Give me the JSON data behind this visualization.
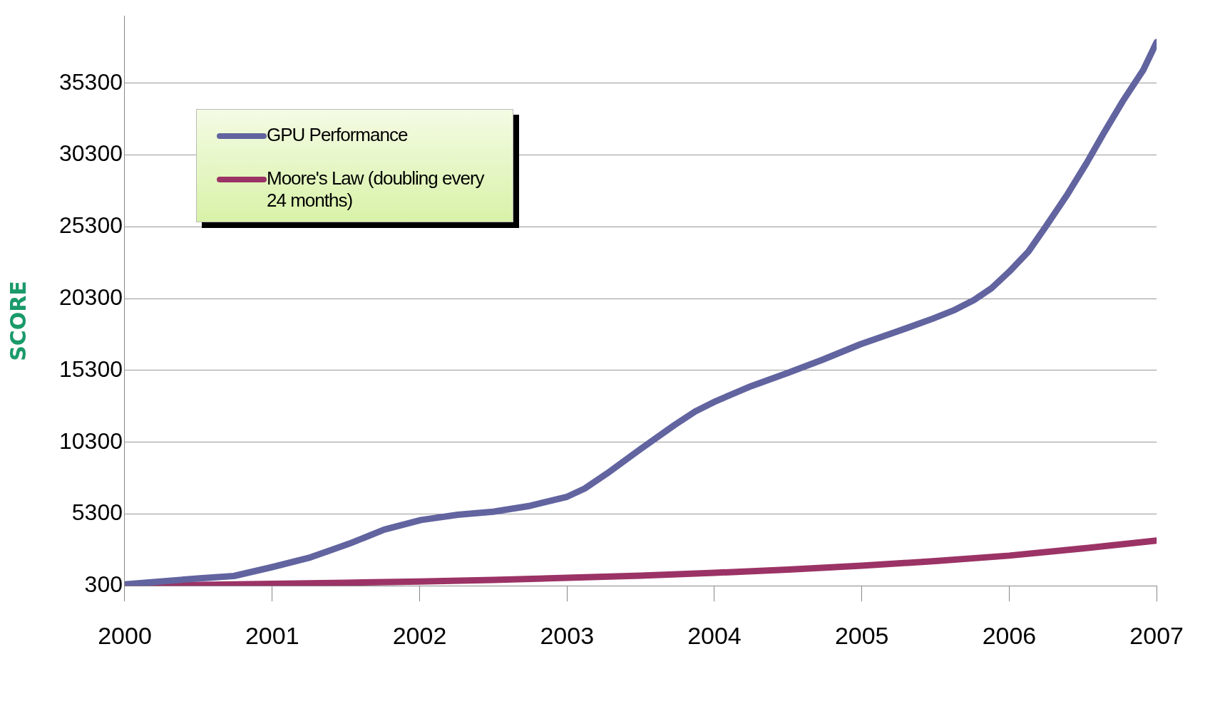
{
  "chart_data": {
    "type": "line",
    "ylabel": "SCORE",
    "xlim": [
      2000,
      2007
    ],
    "xticks": [
      2000,
      2001,
      2002,
      2003,
      2004,
      2005,
      2006,
      2007
    ],
    "ylim": [
      300,
      40000
    ],
    "yticks": [
      300,
      5300,
      10300,
      15300,
      20300,
      25300,
      30300,
      35300
    ],
    "grid": "y",
    "legend": "top left",
    "marker": "none",
    "line_style": "solid",
    "series": [
      {
        "name": "GPU Performance",
        "color": "#6264a0",
        "x": [
          2000,
          2000.51,
          2000.74,
          2001,
          2001.26,
          2001.52,
          2001.76,
          2002.01,
          2002.26,
          2002.5,
          2002.75,
          2003,
          2003.12,
          2003.27,
          2003.5,
          2003.73,
          2003.87,
          2004.01,
          2004.25,
          2004.5,
          2004.73,
          2004.99,
          2005.24,
          2005.48,
          2005.62,
          2005.76,
          2005.88,
          2006,
          2006.13,
          2006.25,
          2006.39,
          2006.53,
          2006.64,
          2006.77,
          2006.91,
          2007
        ],
        "values": [
          400,
          820,
          980,
          1600,
          2280,
          3220,
          4210,
          4880,
          5250,
          5460,
          5870,
          6500,
          7070,
          8110,
          9830,
          11500,
          12440,
          13160,
          14210,
          15140,
          16030,
          17120,
          18010,
          18900,
          19470,
          20200,
          21030,
          22180,
          23580,
          25350,
          27490,
          29830,
          31810,
          34050,
          36240,
          38170
        ]
      },
      {
        "name": "Moore's Law (doubling every 24 months)",
        "color": "#9b3366",
        "x": [
          2000,
          2000.5,
          2001,
          2001.5,
          2002,
          2002.5,
          2003,
          2003.5,
          2004,
          2004.5,
          2005,
          2005.5,
          2006,
          2006.5,
          2007
        ],
        "values": [
          300,
          360,
          440,
          510,
          600,
          710,
          850,
          1000,
          1200,
          1430,
          1700,
          2020,
          2400,
          2900,
          3450
        ]
      }
    ]
  }
}
